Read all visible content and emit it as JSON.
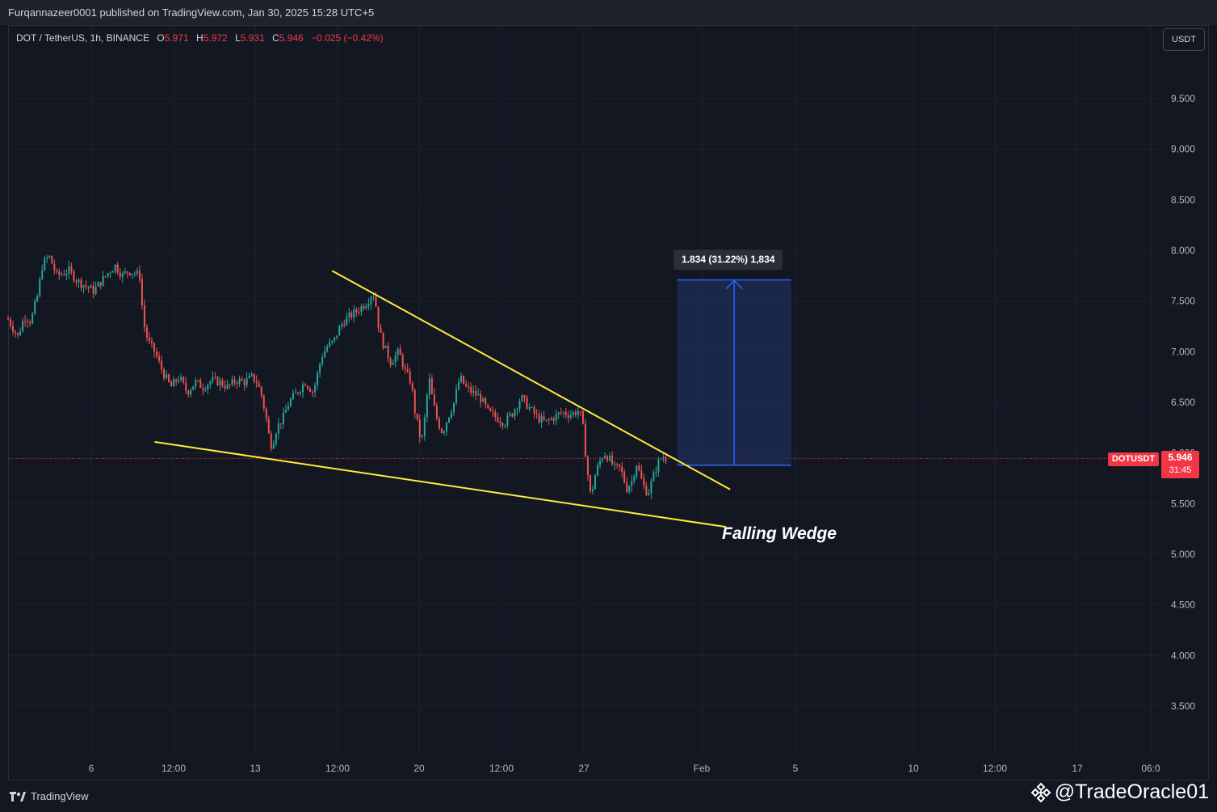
{
  "header": {
    "published": "Furqannazeer0001 published on TradingView.com, Jan 30, 2025 15:28 UTC+5"
  },
  "symbol": {
    "name": "DOT / TetherUS, 1h, BINANCE",
    "open_label": "O",
    "open": "5.971",
    "high_label": "H",
    "high": "5.972",
    "low_label": "L",
    "low": "5.931",
    "close_label": "C",
    "close": "5.946",
    "change": "−0.025 (−0.42%)"
  },
  "currency_button": "USDT",
  "price_scale": {
    "ticker_tag": "DOTUSDT",
    "last_price": "5.946",
    "countdown": "31:45"
  },
  "annotations": {
    "measure": "1.834 (31.22%) 1,834",
    "pattern": "Falling Wedge"
  },
  "footer": {
    "brand": "TradingView",
    "handle": "@TradeOracle01"
  },
  "colors": {
    "background": "#131722",
    "grid": "#1e222d",
    "up": "#26a69a",
    "down": "#ef5350",
    "trendline": "#ffeb3b",
    "measure_fill": "#1c2a52",
    "measure_line": "#2962ff",
    "last_price": "#f23645"
  },
  "chart_data": {
    "type": "candlestick",
    "symbol": "DOTUSDT",
    "interval": "1h",
    "exchange": "BINANCE",
    "y_ticks": [
      "9.500",
      "9.000",
      "8.500",
      "8.000",
      "7.500",
      "7.000",
      "6.500",
      "6.000",
      "5.500",
      "5.000",
      "4.500",
      "4.000",
      "3.500"
    ],
    "x_ticks": [
      "6",
      "12:00",
      "13",
      "12:00",
      "20",
      "12:00",
      "27",
      "Feb",
      "5",
      "10",
      "12:00",
      "17",
      "06:0"
    ],
    "ylim": [
      3.2,
      9.85
    ],
    "last_price": 5.946,
    "ohlc_last": {
      "open": 5.971,
      "high": 5.972,
      "low": 5.931,
      "close": 5.946
    },
    "price_path": [
      [
        0,
        7.32
      ],
      [
        0.05,
        7.25
      ],
      [
        0.12,
        7.15
      ],
      [
        0.2,
        7.35
      ],
      [
        0.28,
        7.3
      ],
      [
        0.36,
        7.55
      ],
      [
        0.42,
        7.85
      ],
      [
        0.5,
        7.95
      ],
      [
        0.6,
        7.75
      ],
      [
        0.75,
        7.8
      ],
      [
        0.85,
        7.7
      ],
      [
        0.95,
        7.65
      ],
      [
        1.05,
        7.6
      ],
      [
        1.15,
        7.7
      ],
      [
        1.25,
        7.8
      ],
      [
        1.32,
        7.85
      ],
      [
        1.4,
        7.75
      ],
      [
        1.48,
        7.8
      ],
      [
        1.55,
        7.78
      ],
      [
        1.62,
        7.75
      ],
      [
        1.66,
        7.3
      ],
      [
        1.72,
        7.1
      ],
      [
        1.8,
        7.0
      ],
      [
        1.9,
        6.8
      ],
      [
        2.0,
        6.65
      ],
      [
        2.1,
        6.75
      ],
      [
        2.2,
        6.6
      ],
      [
        2.3,
        6.7
      ],
      [
        2.4,
        6.65
      ],
      [
        2.5,
        6.72
      ],
      [
        2.6,
        6.7
      ],
      [
        2.7,
        6.65
      ],
      [
        2.8,
        6.72
      ],
      [
        2.9,
        6.7
      ],
      [
        3.0,
        6.75
      ],
      [
        3.06,
        6.7
      ],
      [
        3.12,
        6.55
      ],
      [
        3.18,
        6.3
      ],
      [
        3.22,
        6.08
      ],
      [
        3.25,
        6.1
      ],
      [
        3.3,
        6.25
      ],
      [
        3.38,
        6.35
      ],
      [
        3.45,
        6.5
      ],
      [
        3.55,
        6.6
      ],
      [
        3.65,
        6.7
      ],
      [
        3.75,
        6.6
      ],
      [
        3.85,
        6.95
      ],
      [
        3.92,
        7.05
      ],
      [
        4.0,
        7.1
      ],
      [
        4.05,
        7.2
      ],
      [
        4.12,
        7.3
      ],
      [
        4.2,
        7.35
      ],
      [
        4.28,
        7.4
      ],
      [
        4.35,
        7.45
      ],
      [
        4.42,
        7.5
      ],
      [
        4.48,
        7.6
      ],
      [
        4.52,
        7.45
      ],
      [
        4.56,
        7.2
      ],
      [
        4.62,
        7.05
      ],
      [
        4.7,
        6.9
      ],
      [
        4.8,
        7.0
      ],
      [
        4.88,
        6.8
      ],
      [
        4.95,
        6.7
      ],
      [
        5.0,
        6.4
      ],
      [
        5.05,
        6.2
      ],
      [
        5.08,
        6.1
      ],
      [
        5.12,
        6.35
      ],
      [
        5.17,
        6.75
      ],
      [
        5.22,
        6.5
      ],
      [
        5.28,
        6.3
      ],
      [
        5.34,
        6.2
      ],
      [
        5.4,
        6.35
      ],
      [
        5.48,
        6.5
      ],
      [
        5.55,
        6.75
      ],
      [
        5.62,
        6.65
      ],
      [
        5.7,
        6.6
      ],
      [
        5.8,
        6.55
      ],
      [
        5.9,
        6.4
      ],
      [
        6.0,
        6.35
      ],
      [
        6.1,
        6.3
      ],
      [
        6.2,
        6.4
      ],
      [
        6.3,
        6.55
      ],
      [
        6.4,
        6.45
      ],
      [
        6.5,
        6.35
      ],
      [
        6.6,
        6.3
      ],
      [
        6.7,
        6.35
      ],
      [
        6.8,
        6.4
      ],
      [
        6.92,
        6.38
      ],
      [
        7.0,
        6.42
      ],
      [
        7.05,
        6.35
      ],
      [
        7.08,
        6.1
      ],
      [
        7.12,
        5.8
      ],
      [
        7.16,
        5.55
      ],
      [
        7.2,
        5.75
      ],
      [
        7.26,
        5.9
      ],
      [
        7.32,
        6.0
      ],
      [
        7.38,
        5.95
      ],
      [
        7.45,
        5.85
      ],
      [
        7.52,
        5.85
      ],
      [
        7.6,
        5.65
      ],
      [
        7.66,
        5.72
      ],
      [
        7.72,
        5.9
      ],
      [
        7.8,
        5.68
      ],
      [
        7.86,
        5.6
      ],
      [
        7.92,
        5.75
      ],
      [
        7.98,
        5.9
      ],
      [
        8.04,
        5.97
      ],
      [
        8.08,
        5.946
      ]
    ],
    "trendlines": [
      {
        "name": "upper",
        "points": [
          [
            3.98,
            7.8
          ],
          [
            8.87,
            5.64
          ]
        ]
      },
      {
        "name": "lower",
        "points": [
          [
            1.8,
            6.11
          ],
          [
            8.82,
            5.27
          ]
        ]
      }
    ],
    "measure": {
      "from_price": 5.88,
      "to_price": 7.71,
      "x_start": 8.22,
      "x_end": 9.62,
      "change": 1.834,
      "change_pct": 31.22,
      "ticks": 1834
    }
  }
}
